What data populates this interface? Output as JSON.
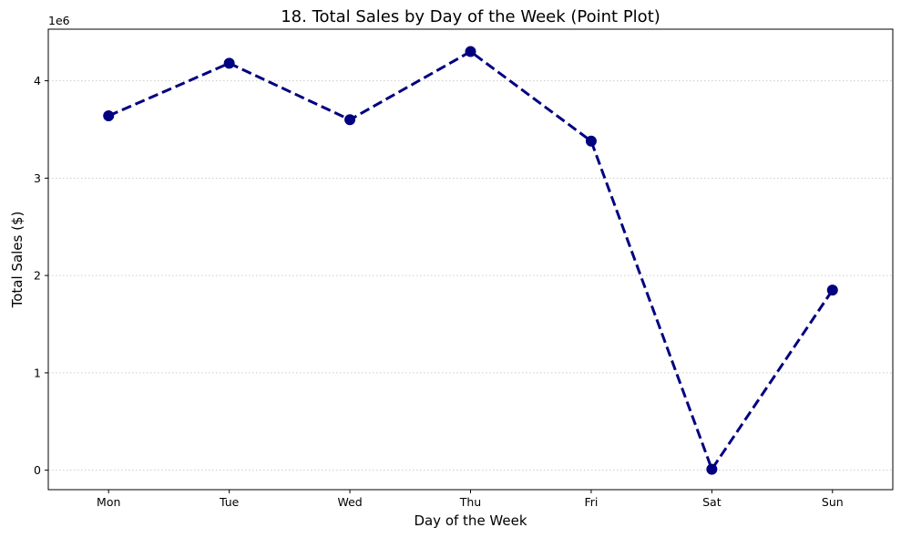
{
  "chart_data": {
    "type": "line",
    "title": "18. Total Sales by Day of the Week (Point Plot)",
    "xlabel": "Day of the Week",
    "ylabel": "Total Sales ($)",
    "y_offset_label": "1e6",
    "categories": [
      "Mon",
      "Tue",
      "Wed",
      "Thu",
      "Fri",
      "Sat",
      "Sun"
    ],
    "series": [
      {
        "values": [
          3640000,
          4180000,
          3600000,
          4300000,
          3380000,
          10000,
          1850000
        ]
      }
    ],
    "y_ticks": [
      0,
      1000000,
      2000000,
      3000000,
      4000000
    ],
    "y_tick_labels": [
      "0",
      "1",
      "2",
      "3",
      "4"
    ],
    "ylim": [
      -200000,
      4530000
    ],
    "grid": "y-dotted",
    "line_style": "dashed",
    "marker": "circle",
    "color": "#000080",
    "grid_color": "#cccccc"
  }
}
